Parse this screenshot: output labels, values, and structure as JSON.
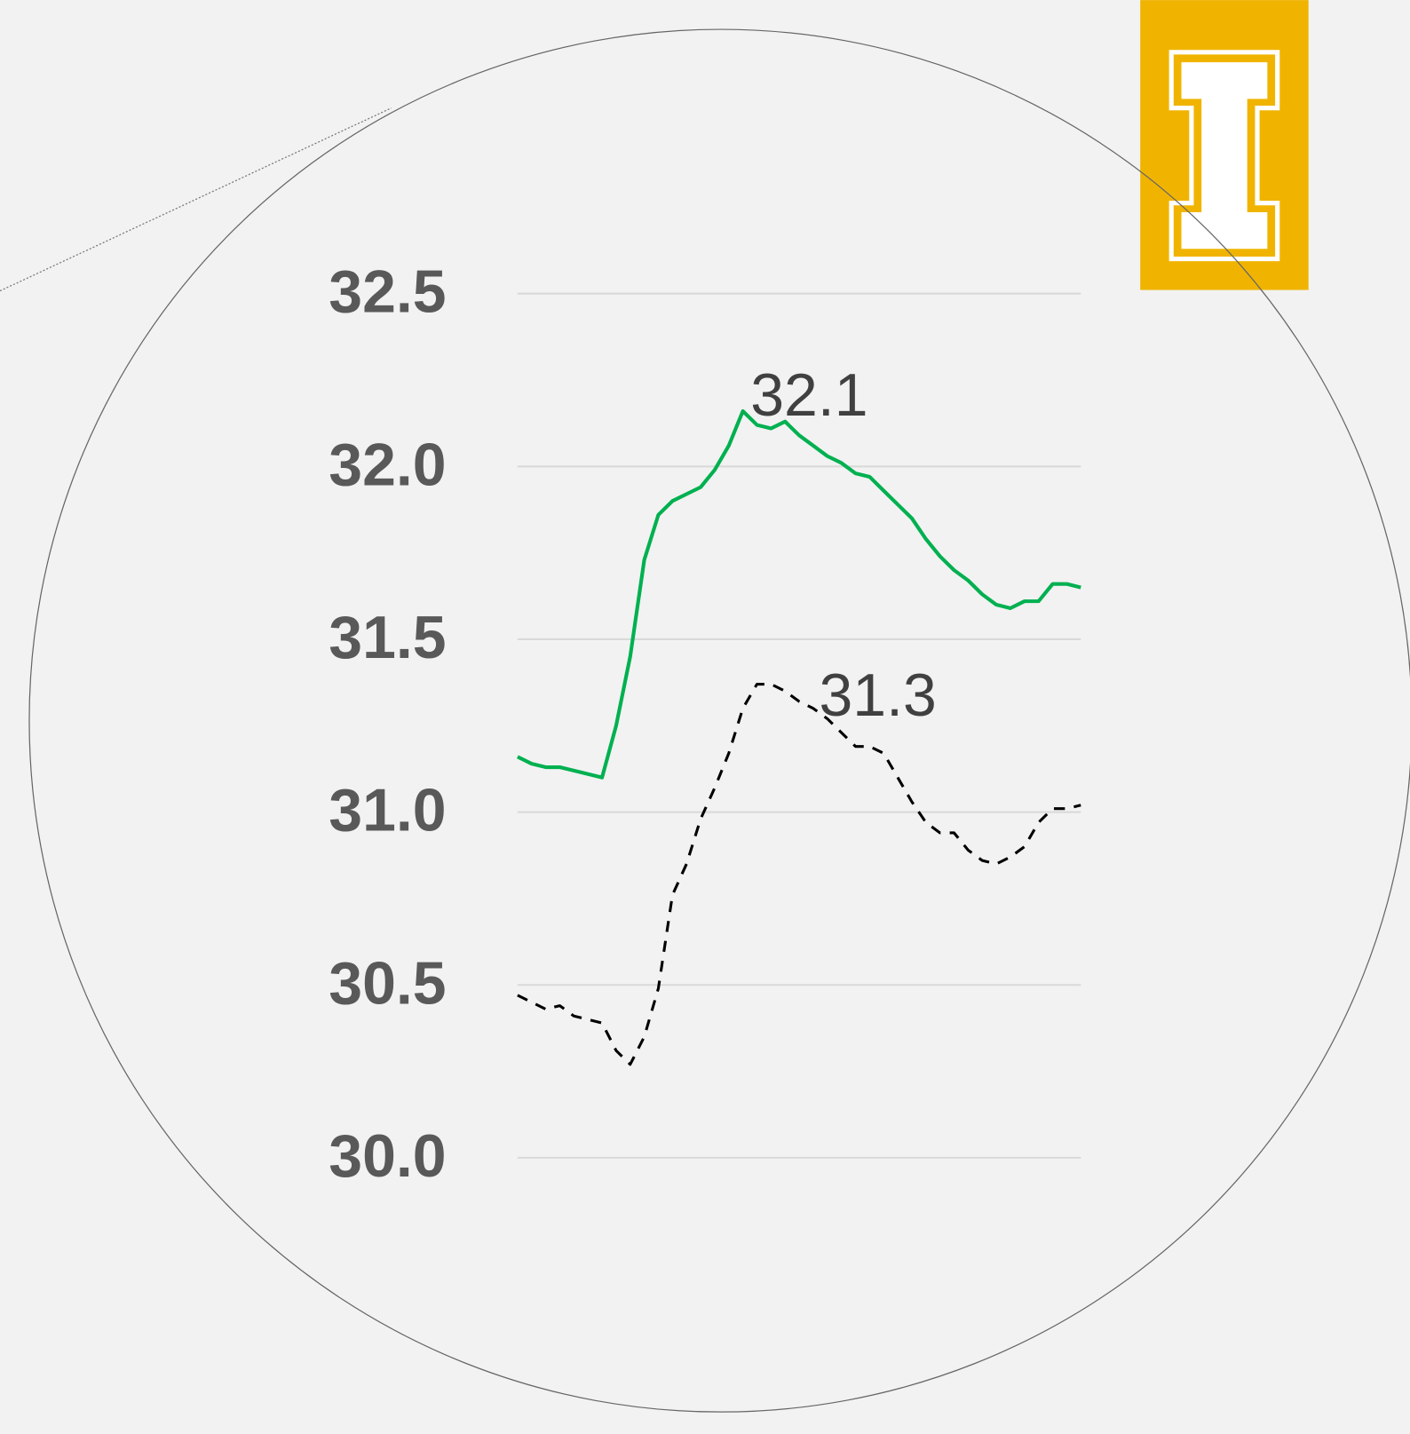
{
  "chart_data": {
    "type": "line",
    "categories": [
      null,
      null,
      null,
      null,
      null,
      null,
      null,
      null,
      null,
      null,
      null,
      null,
      null,
      null,
      null,
      null,
      null,
      null,
      null,
      null,
      null,
      null,
      null,
      null,
      null,
      null,
      null,
      null,
      null,
      null,
      null,
      null,
      null,
      null,
      null,
      null,
      null,
      null,
      null,
      null,
      null
    ],
    "series": [
      {
        "color": "#00b050",
        "dashed": false,
        "values": [
          31.16,
          31.14,
          31.13,
          31.13,
          31.12,
          31.11,
          31.1,
          31.25,
          31.45,
          31.73,
          31.86,
          31.9,
          31.92,
          31.94,
          31.99,
          32.06,
          32.16,
          32.12,
          32.11,
          32.13,
          32.09,
          32.06,
          32.03,
          32.01,
          31.98,
          31.97,
          31.93,
          31.89,
          31.85,
          31.79,
          31.74,
          31.7,
          31.67,
          31.63,
          31.6,
          31.59,
          31.61,
          31.61,
          31.66,
          31.66,
          31.65
        ]
      },
      {
        "color": "#000000",
        "dashed": true,
        "values": [
          30.47,
          30.45,
          30.43,
          30.44,
          30.41,
          30.4,
          30.39,
          30.31,
          30.27,
          30.35,
          30.49,
          30.76,
          30.85,
          30.98,
          31.07,
          31.17,
          31.3,
          31.37,
          31.37,
          31.35,
          31.32,
          31.3,
          31.27,
          31.23,
          31.19,
          31.19,
          31.17,
          31.1,
          31.03,
          30.97,
          30.94,
          30.94,
          30.89,
          30.86,
          30.85,
          30.87,
          30.9,
          30.97,
          31.01,
          31.01,
          31.02
        ]
      }
    ],
    "annotations": [
      "32.1",
      "31.3"
    ],
    "ylim": [
      30.0,
      32.5
    ],
    "yticks": [
      {
        "value": 30.0,
        "label": "30.0"
      },
      {
        "value": 30.5,
        "label": "30.5"
      },
      {
        "value": 31.0,
        "label": "31.0"
      },
      {
        "value": 31.5,
        "label": "31.5"
      },
      {
        "value": 32.0,
        "label": "32.0"
      },
      {
        "value": 32.5,
        "label": "32.5"
      }
    ],
    "grid": true
  }
}
